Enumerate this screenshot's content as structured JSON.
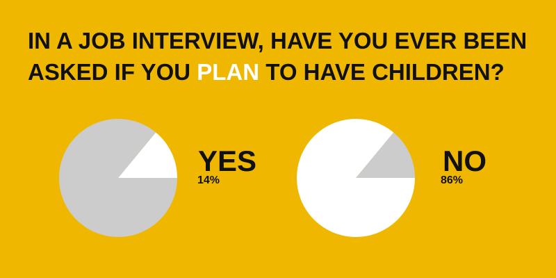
{
  "header": {
    "title_line1": "IN A JOB INTERVIEW, HAVE YOU EVER BEEN",
    "title_line2": [
      "ASKED IF YOU",
      "PLAN",
      "TO HAVE CHILDREN?"
    ]
  },
  "chart_data": [
    {
      "type": "pie",
      "label": "YES",
      "values": [
        14,
        86
      ],
      "value_labels": [
        "14%",
        null
      ],
      "colors": [
        "#ffffff",
        "#cccccc"
      ]
    },
    {
      "type": "pie",
      "label": "NO",
      "values": [
        14,
        86
      ],
      "value_labels": [
        null,
        "86%"
      ],
      "colors": [
        "#cccccc",
        "#ffffff"
      ]
    }
  ]
}
